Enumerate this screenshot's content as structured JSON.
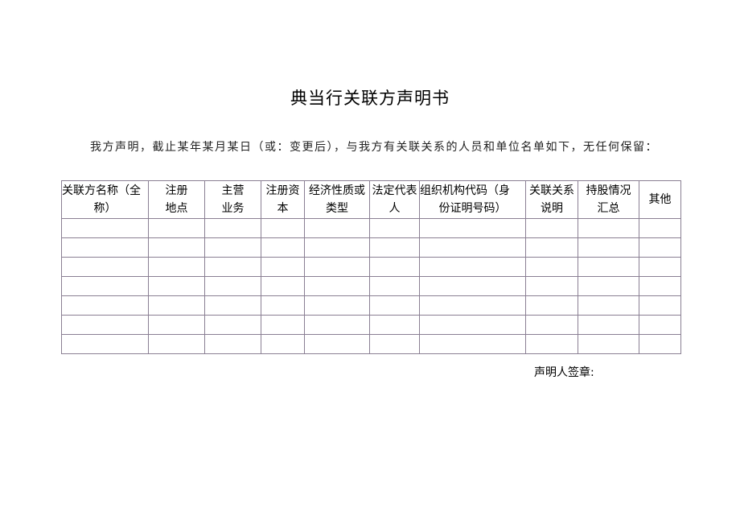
{
  "title": "典当行关联方声明书",
  "intro": "我方声明，截止某年某月某日（或：变更后），与我方有关联关系的人员和单位名单如下，无任何保留：",
  "table": {
    "headers": [
      [
        "关联方名称（全",
        "称）"
      ],
      [
        "注册",
        "地点"
      ],
      [
        "主营",
        "业务"
      ],
      [
        "注册资",
        "本"
      ],
      [
        "经济性质或",
        "类型"
      ],
      [
        "法定代表",
        "人"
      ],
      [
        "组织机构代码（身",
        "份证明号码）"
      ],
      [
        "关联关系",
        "说明"
      ],
      [
        "持股情况",
        "汇总"
      ],
      [
        "其他"
      ]
    ],
    "rows": [
      [
        "",
        "",
        "",
        "",
        "",
        "",
        "",
        "",
        "",
        ""
      ],
      [
        "",
        "",
        "",
        "",
        "",
        "",
        "",
        "",
        "",
        ""
      ],
      [
        "",
        "",
        "",
        "",
        "",
        "",
        "",
        "",
        "",
        ""
      ],
      [
        "",
        "",
        "",
        "",
        "",
        "",
        "",
        "",
        "",
        ""
      ],
      [
        "",
        "",
        "",
        "",
        "",
        "",
        "",
        "",
        "",
        ""
      ],
      [
        "",
        "",
        "",
        "",
        "",
        "",
        "",
        "",
        "",
        ""
      ],
      [
        "",
        "",
        "",
        "",
        "",
        "",
        "",
        "",
        "",
        ""
      ]
    ],
    "border_color": "#8a7f93"
  },
  "signature_label": "声明人签章:"
}
